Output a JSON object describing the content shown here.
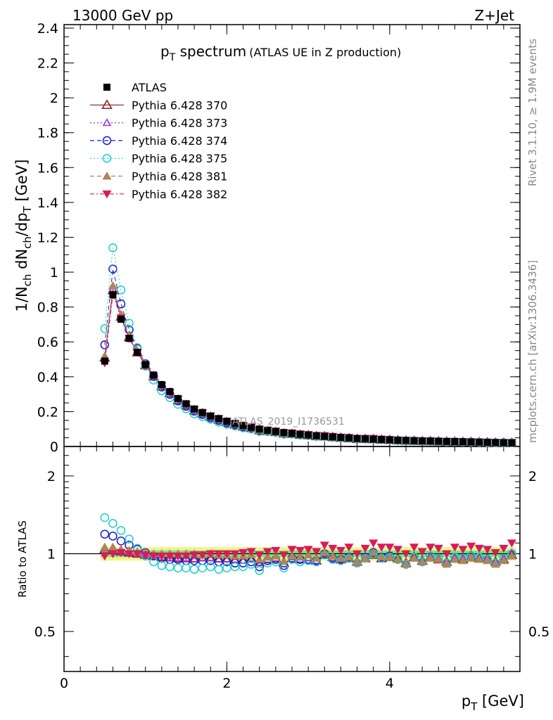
{
  "header": {
    "left": "13000 GeV pp",
    "right": "Z+Jet"
  },
  "side_labels": {
    "rivet": "Rivet 3.1.10, ≥ 1.9M events",
    "mcplots": "mcplots.cern.ch [arXiv:1306.3436]"
  },
  "title": {
    "main": "p",
    "sub": "T",
    "rest": " spectrum",
    "small": "(ATLAS UE in Z production)"
  },
  "watermark": "ATLAS_2019_I1736531",
  "y_main_label": "1/N_ch dN_ch/dp_T [GeV]",
  "y_ratio_label": "Ratio to ATLAS",
  "x_label": "p_T [GeV]",
  "main_yticks": [
    "0",
    "0.2",
    "0.4",
    "0.6",
    "0.8",
    "1",
    "1.2",
    "1.4",
    "1.6",
    "1.8",
    "2",
    "2.2",
    "2.4"
  ],
  "ratio_yticks": [
    "0.5",
    "1",
    "2"
  ],
  "xticks": [
    "0",
    "2",
    "4"
  ],
  "colors": {
    "ATLAS": "#000000",
    "p370": "#8b1a1a",
    "p373": "#9932cc",
    "p374": "#1a1acd",
    "p375": "#1ccfc9",
    "p381": "#b08654",
    "p382": "#d81b5a",
    "band_inner": "#7fe37f",
    "band_outer": "#f0f48a"
  },
  "chart_data": {
    "type": "scatter",
    "x": [
      0.5,
      0.6,
      0.7,
      0.8,
      0.9,
      1.0,
      1.1,
      1.2,
      1.3,
      1.4,
      1.5,
      1.6,
      1.7,
      1.8,
      1.9,
      2.0,
      2.1,
      2.2,
      2.3,
      2.4,
      2.5,
      2.6,
      2.7,
      2.8,
      2.9,
      3.0,
      3.1,
      3.2,
      3.3,
      3.4,
      3.5,
      3.6,
      3.7,
      3.8,
      3.9,
      4.0,
      4.1,
      4.2,
      4.3,
      4.4,
      4.5,
      4.6,
      4.7,
      4.8,
      4.9,
      5.0,
      5.1,
      5.2,
      5.3,
      5.4,
      5.5
    ],
    "xlim": [
      0,
      5.6
    ],
    "main_ylim": [
      0,
      2.42
    ],
    "ratio_ylim": [
      0.35,
      2.6
    ],
    "ratio_log": true,
    "atlas": [
      0.49,
      0.87,
      0.73,
      0.62,
      0.54,
      0.47,
      0.41,
      0.355,
      0.315,
      0.275,
      0.245,
      0.215,
      0.195,
      0.175,
      0.16,
      0.145,
      0.132,
      0.12,
      0.11,
      0.1,
      0.093,
      0.086,
      0.08,
      0.075,
      0.07,
      0.066,
      0.062,
      0.058,
      0.055,
      0.052,
      0.049,
      0.046,
      0.044,
      0.042,
      0.04,
      0.038,
      0.036,
      0.035,
      0.033,
      0.032,
      0.031,
      0.03,
      0.029,
      0.028,
      0.027,
      0.026,
      0.025,
      0.024,
      0.023,
      0.022,
      0.021
    ],
    "band_inner": 0.03,
    "band_outer": 0.06,
    "legend": [
      "ATLAS",
      "Pythia 6.428 370",
      "Pythia 6.428 373",
      "Pythia 6.428 374",
      "Pythia 6.428 375",
      "Pythia 6.428 381",
      "Pythia 6.428 382"
    ],
    "series": [
      {
        "name": "Pythia 6.428 370",
        "key": "p370",
        "marker": "tri-open",
        "dash": "",
        "ratio": [
          1.04,
          1.03,
          1.02,
          1.01,
          1.0,
          0.99,
          0.98,
          0.97,
          0.97,
          0.96,
          0.96,
          0.96,
          0.97,
          0.97,
          0.96,
          0.96,
          0.95,
          0.95,
          0.96,
          0.93,
          0.95,
          0.96,
          0.92,
          0.96,
          0.95,
          0.97,
          0.94,
          0.99,
          0.97,
          0.95,
          0.96,
          0.93,
          0.96,
          0.99,
          0.96,
          0.97,
          0.96,
          0.92,
          0.97,
          0.94,
          0.97,
          0.95,
          0.93,
          0.96,
          0.95,
          0.98,
          0.96,
          0.96,
          0.93,
          0.95,
          0.99
        ]
      },
      {
        "name": "Pythia 6.428 373",
        "key": "p373",
        "marker": "tri-open-small",
        "dash": "2,3",
        "ratio": [
          1.05,
          1.04,
          1.02,
          1.01,
          1.0,
          0.99,
          0.98,
          0.97,
          0.96,
          0.96,
          0.96,
          0.95,
          0.96,
          0.96,
          0.95,
          0.95,
          0.95,
          0.94,
          0.95,
          0.92,
          0.95,
          0.96,
          0.91,
          0.97,
          0.95,
          0.96,
          0.94,
          1.0,
          0.96,
          0.95,
          0.97,
          0.93,
          0.97,
          1.02,
          0.97,
          0.98,
          0.95,
          0.93,
          0.97,
          0.94,
          0.98,
          0.96,
          0.93,
          0.97,
          0.96,
          0.99,
          0.97,
          0.96,
          0.93,
          0.96,
          1.01
        ]
      },
      {
        "name": "Pythia 6.428 374",
        "key": "p374",
        "marker": "circle-open",
        "dash": "6,4",
        "ratio": [
          1.19,
          1.17,
          1.12,
          1.08,
          1.04,
          1.01,
          0.98,
          0.96,
          0.95,
          0.95,
          0.94,
          0.94,
          0.94,
          0.94,
          0.93,
          0.93,
          0.92,
          0.92,
          0.93,
          0.89,
          0.94,
          0.95,
          0.9,
          0.96,
          0.95,
          0.95,
          0.94,
          1.0,
          0.96,
          0.95,
          0.97,
          0.92,
          0.97,
          1.01,
          0.97,
          0.98,
          0.95,
          0.91,
          0.97,
          0.93,
          0.98,
          0.96,
          0.92,
          0.97,
          0.96,
          0.98,
          0.97,
          0.95,
          0.92,
          0.96,
          1.0
        ]
      },
      {
        "name": "Pythia 6.428 375",
        "key": "p375",
        "marker": "circle-open",
        "dash": "2,3",
        "ratio": [
          1.38,
          1.31,
          1.23,
          1.14,
          1.05,
          0.98,
          0.93,
          0.9,
          0.89,
          0.88,
          0.88,
          0.87,
          0.88,
          0.89,
          0.87,
          0.88,
          0.89,
          0.89,
          0.91,
          0.86,
          0.92,
          0.93,
          0.88,
          0.95,
          0.93,
          0.94,
          0.93,
          0.99,
          0.95,
          0.94,
          0.96,
          0.92,
          0.96,
          1.0,
          0.96,
          0.97,
          0.95,
          0.91,
          0.97,
          0.93,
          0.98,
          0.96,
          0.92,
          0.97,
          0.96,
          0.98,
          0.97,
          0.95,
          0.92,
          0.96,
          1.0
        ]
      },
      {
        "name": "Pythia 6.428 381",
        "key": "p381",
        "marker": "tri-fill",
        "dash": "6,4",
        "ratio": [
          1.06,
          1.06,
          1.04,
          1.03,
          1.02,
          1.01,
          1.0,
          1.0,
          1.0,
          1.0,
          1.0,
          1.0,
          0.99,
          1.0,
          0.99,
          0.99,
          0.98,
          0.98,
          0.99,
          0.95,
          0.97,
          0.98,
          0.94,
          0.98,
          0.97,
          0.99,
          0.96,
          1.01,
          0.98,
          0.96,
          0.97,
          0.93,
          0.96,
          1.01,
          0.97,
          0.97,
          0.95,
          0.91,
          0.96,
          0.93,
          0.96,
          0.95,
          0.91,
          0.95,
          0.94,
          0.96,
          0.95,
          0.94,
          0.91,
          0.94,
          0.98
        ]
      },
      {
        "name": "Pythia 6.428 382",
        "key": "p382",
        "marker": "tri-down-fill",
        "dash": "6,3,2,3",
        "ratio": [
          0.98,
          1.0,
          1.01,
          1.0,
          1.0,
          0.99,
          0.98,
          0.98,
          0.98,
          0.98,
          0.98,
          0.99,
          0.99,
          1.0,
          1.0,
          1.0,
          1.0,
          1.01,
          1.02,
          0.99,
          1.02,
          1.03,
          0.99,
          1.04,
          1.03,
          1.04,
          1.02,
          1.08,
          1.05,
          1.03,
          1.06,
          1.0,
          1.05,
          1.1,
          1.06,
          1.06,
          1.04,
          1.0,
          1.06,
          1.02,
          1.06,
          1.05,
          1.0,
          1.06,
          1.04,
          1.07,
          1.05,
          1.04,
          1.01,
          1.05,
          1.1
        ]
      }
    ]
  }
}
